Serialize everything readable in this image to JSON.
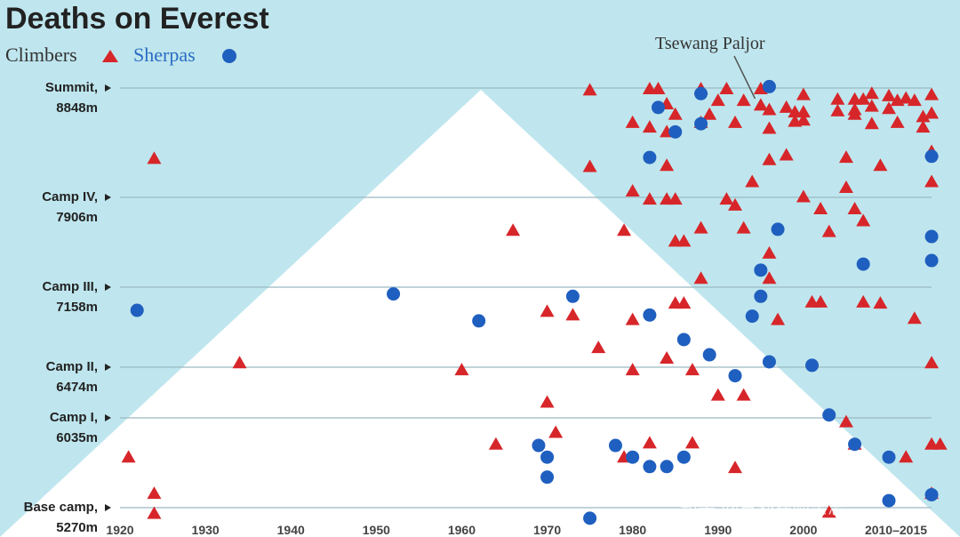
{
  "colors": {
    "sky": "#bfe6ee",
    "mountain": "#ffffff",
    "climber": "#d7262a",
    "sherpa": "#1f5fbf",
    "grid": "#9bb9c2",
    "text": "#222222"
  },
  "chart_data": {
    "type": "scatter",
    "title": "Deaths on Everest",
    "legend": {
      "position": "top-left",
      "climbers_label": "Climbers",
      "sherpas_label": "Sherpas"
    },
    "xlim": [
      1918,
      2018
    ],
    "ylim": [
      5250,
      8900
    ],
    "x_ticks": [
      1920,
      1930,
      1940,
      1950,
      1960,
      1970,
      1980,
      1990,
      2000,
      "2010–2015"
    ],
    "y_levels": [
      {
        "name": "Summit,",
        "alt": "8848m",
        "value": 8848
      },
      {
        "name": "Camp IV,",
        "alt": "7906m",
        "value": 7906
      },
      {
        "name": "Camp III,",
        "alt": "7158m",
        "value": 7158
      },
      {
        "name": "Camp II,",
        "alt": "6474m",
        "value": 6474
      },
      {
        "name": "Camp I,",
        "alt": "6035m",
        "value": 6035
      },
      {
        "name": "Base camp,",
        "alt": "5270m",
        "value": 5270
      }
    ],
    "annotation": {
      "label": "Tsewang Paljor",
      "year": 1996,
      "alt": 8848
    },
    "watermark": "知乎 @户外探险杂志",
    "series": [
      {
        "name": "Climbers",
        "marker": "triangle",
        "points": [
          [
            1924,
            8240
          ],
          [
            1921,
            5700
          ],
          [
            1924,
            5390
          ],
          [
            1924,
            5220
          ],
          [
            1934,
            6510
          ],
          [
            1960,
            6450
          ],
          [
            1964,
            5810
          ],
          [
            1966,
            7630
          ],
          [
            1970,
            6950
          ],
          [
            1970,
            6170
          ],
          [
            1971,
            5910
          ],
          [
            1973,
            6920
          ],
          [
            1975,
            8830
          ],
          [
            1975,
            8170
          ],
          [
            1976,
            6640
          ],
          [
            1979,
            5700
          ],
          [
            1979,
            7630
          ],
          [
            1980,
            6880
          ],
          [
            1980,
            8550
          ],
          [
            1980,
            7960
          ],
          [
            1980,
            6450
          ],
          [
            1982,
            8840
          ],
          [
            1982,
            8510
          ],
          [
            1982,
            7890
          ],
          [
            1982,
            5820
          ],
          [
            1983,
            8840
          ],
          [
            1984,
            8710
          ],
          [
            1984,
            8470
          ],
          [
            1984,
            8180
          ],
          [
            1984,
            7890
          ],
          [
            1984,
            6550
          ],
          [
            1985,
            8620
          ],
          [
            1985,
            7890
          ],
          [
            1985,
            7540
          ],
          [
            1985,
            7020
          ],
          [
            1986,
            7020
          ],
          [
            1986,
            7540
          ],
          [
            1987,
            6450
          ],
          [
            1987,
            5820
          ],
          [
            1988,
            8840
          ],
          [
            1988,
            7650
          ],
          [
            1988,
            7230
          ],
          [
            1988,
            8550
          ],
          [
            1989,
            8620
          ],
          [
            1990,
            8740
          ],
          [
            1990,
            6230
          ],
          [
            1991,
            8840
          ],
          [
            1991,
            7890
          ],
          [
            1992,
            8550
          ],
          [
            1992,
            7840
          ],
          [
            1992,
            5610
          ],
          [
            1993,
            7650
          ],
          [
            1993,
            6230
          ],
          [
            1993,
            8740
          ],
          [
            1994,
            8040
          ],
          [
            1995,
            8840
          ],
          [
            1995,
            8700
          ],
          [
            1996,
            8660
          ],
          [
            1996,
            8500
          ],
          [
            1996,
            7440
          ],
          [
            1996,
            7230
          ],
          [
            1996,
            8230
          ],
          [
            1997,
            6880
          ],
          [
            1998,
            8270
          ],
          [
            1998,
            8680
          ],
          [
            1999,
            8640
          ],
          [
            1999,
            8560
          ],
          [
            2000,
            8790
          ],
          [
            2000,
            8640
          ],
          [
            2000,
            8570
          ],
          [
            2000,
            7910
          ],
          [
            2001,
            7030
          ],
          [
            2002,
            7030
          ],
          [
            2002,
            7810
          ],
          [
            2003,
            7620
          ],
          [
            2003,
            5230
          ],
          [
            2004,
            8750
          ],
          [
            2004,
            8650
          ],
          [
            2005,
            8250
          ],
          [
            2005,
            7990
          ],
          [
            2005,
            6000
          ],
          [
            2006,
            8750
          ],
          [
            2006,
            8660
          ],
          [
            2006,
            8620
          ],
          [
            2006,
            7810
          ],
          [
            2006,
            5810
          ],
          [
            2007,
            8750
          ],
          [
            2007,
            7030
          ],
          [
            2007,
            7710
          ],
          [
            2008,
            8800
          ],
          [
            2008,
            8690
          ],
          [
            2008,
            8540
          ],
          [
            2009,
            8180
          ],
          [
            2009,
            7020
          ],
          [
            2010,
            8780
          ],
          [
            2010,
            8670
          ],
          [
            2011,
            8740
          ],
          [
            2011,
            8550
          ],
          [
            2012,
            8760
          ],
          [
            2012,
            5700
          ],
          [
            2013,
            6890
          ],
          [
            2013,
            8740
          ],
          [
            2014,
            8600
          ],
          [
            2014,
            8510
          ],
          [
            2015,
            8790
          ],
          [
            2015,
            8630
          ],
          [
            2015,
            8300
          ],
          [
            2015,
            8040
          ],
          [
            2015,
            6510
          ],
          [
            2015,
            5810
          ],
          [
            2016,
            5810
          ],
          [
            2015,
            5390
          ]
        ]
      },
      {
        "name": "Sherpas",
        "marker": "circle",
        "points": [
          [
            1922,
            6960
          ],
          [
            1952,
            7100
          ],
          [
            1962,
            6870
          ],
          [
            1969,
            5800
          ],
          [
            1970,
            5700
          ],
          [
            1970,
            5530
          ],
          [
            1973,
            7080
          ],
          [
            1975,
            5180
          ],
          [
            1978,
            5800
          ],
          [
            1980,
            5700
          ],
          [
            1982,
            5620
          ],
          [
            1982,
            8250
          ],
          [
            1982,
            6920
          ],
          [
            1983,
            8680
          ],
          [
            1984,
            5620
          ],
          [
            1985,
            8470
          ],
          [
            1986,
            5700
          ],
          [
            1986,
            6710
          ],
          [
            1988,
            8800
          ],
          [
            1988,
            8540
          ],
          [
            1989,
            6580
          ],
          [
            1992,
            6400
          ],
          [
            1994,
            6910
          ],
          [
            1995,
            7300
          ],
          [
            1995,
            7080
          ],
          [
            1996,
            6520
          ],
          [
            1996,
            8860
          ],
          [
            1997,
            7640
          ],
          [
            2001,
            6490
          ],
          [
            2003,
            6060
          ],
          [
            2006,
            5810
          ],
          [
            2007,
            7350
          ],
          [
            2010,
            5700
          ],
          [
            2010,
            5330
          ],
          [
            2015,
            8260
          ],
          [
            2015,
            7580
          ],
          [
            2015,
            7380
          ],
          [
            2015,
            5380
          ]
        ]
      }
    ]
  }
}
